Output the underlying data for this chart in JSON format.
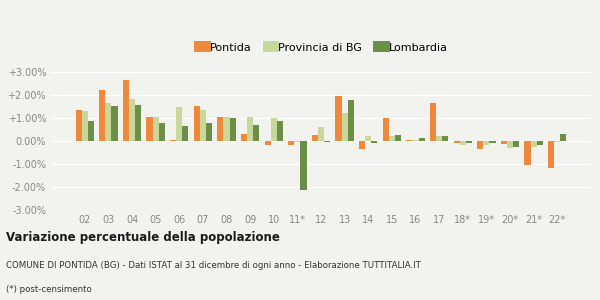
{
  "categories": [
    "02",
    "03",
    "04",
    "05",
    "06",
    "07",
    "08",
    "09",
    "10",
    "11*",
    "12",
    "13",
    "14",
    "15",
    "16",
    "17",
    "18*",
    "19*",
    "20*",
    "21*",
    "22*"
  ],
  "pontida": [
    1.35,
    2.2,
    2.65,
    1.05,
    0.05,
    1.5,
    1.05,
    0.3,
    -0.2,
    -0.2,
    0.25,
    1.95,
    -0.35,
    1.0,
    0.05,
    1.65,
    -0.1,
    -0.35,
    -0.15,
    -1.05,
    -1.2
  ],
  "provincia": [
    1.3,
    1.65,
    1.8,
    1.05,
    1.45,
    1.35,
    1.05,
    1.05,
    1.0,
    -0.05,
    0.6,
    1.2,
    0.2,
    0.2,
    0.05,
    0.2,
    -0.2,
    -0.2,
    -0.3,
    -0.25,
    -0.05
  ],
  "lombardia": [
    0.85,
    1.5,
    1.55,
    0.75,
    0.65,
    0.75,
    1.0,
    0.7,
    0.85,
    -2.15,
    -0.05,
    1.75,
    -0.1,
    0.25,
    0.1,
    0.2,
    -0.1,
    -0.1,
    -0.25,
    -0.2,
    0.3
  ],
  "color_pontida": "#f0883c",
  "color_provincia": "#c8d89a",
  "color_lombardia": "#6b8f47",
  "title": "Variazione percentuale della popolazione",
  "subtitle": "COMUNE DI PONTIDA (BG) - Dati ISTAT al 31 dicembre di ogni anno - Elaborazione TUTTITALIA.IT",
  "footnote": "(*) post-censimento",
  "legend_labels": [
    "Pontida",
    "Provincia di BG",
    "Lombardia"
  ],
  "ylim": [
    -3.0,
    3.5
  ],
  "yticks": [
    -3.0,
    -2.0,
    -1.0,
    0.0,
    1.0,
    2.0,
    3.0
  ],
  "ytick_labels": [
    "-3.00%",
    "-2.00%",
    "-1.00%",
    "0.00%",
    "+1.00%",
    "+2.00%",
    "+3.00%"
  ],
  "bg_color": "#f2f2ee",
  "bar_width": 0.26
}
